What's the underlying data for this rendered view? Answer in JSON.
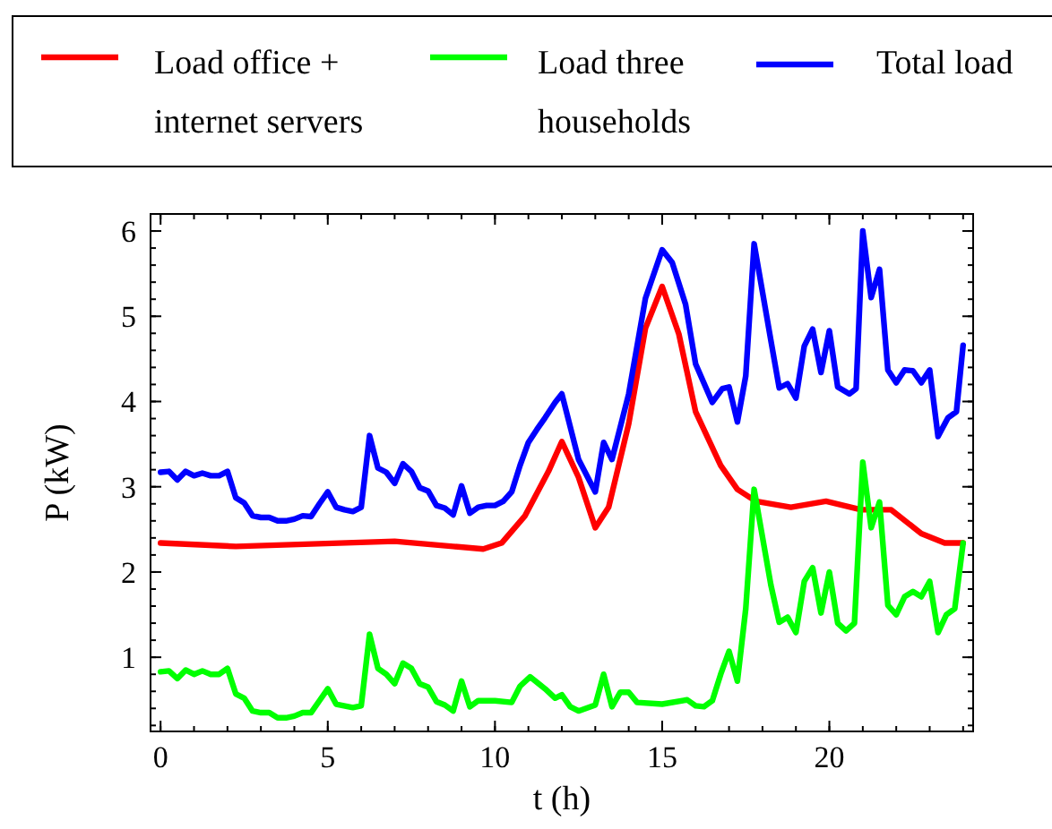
{
  "chart_data": {
    "type": "line",
    "xlabel": "t (h)",
    "ylabel": "P (kW)",
    "xlim": [
      -0.3,
      24.3
    ],
    "ylim": [
      0.13,
      6.2
    ],
    "xticks": [
      0,
      5,
      10,
      15,
      20
    ],
    "yticks": [
      1,
      2,
      3,
      4,
      5,
      6
    ],
    "legend": "top",
    "grid": false,
    "marker": "none",
    "line_style": "solid",
    "series": [
      {
        "name": "Load office + internet servers",
        "color": "#ff0000",
        "x": [
          0,
          2.25,
          7,
          8.75,
          9.65,
          10.2,
          10.9,
          11.6,
          12,
          12.5,
          13,
          13.4,
          14,
          14.5,
          15,
          15.5,
          16,
          16.75,
          17.25,
          17.8,
          18.85,
          19.9,
          20.95,
          21.85,
          22.75,
          23.45,
          24
        ],
        "values": [
          2.34,
          2.3,
          2.36,
          2.3,
          2.27,
          2.34,
          2.66,
          3.18,
          3.53,
          3.11,
          2.52,
          2.76,
          3.74,
          4.86,
          5.35,
          4.79,
          3.88,
          3.25,
          2.97,
          2.83,
          2.76,
          2.83,
          2.73,
          2.73,
          2.45,
          2.34,
          2.34
        ]
      },
      {
        "name": "Load three households",
        "color": "#00ff00",
        "x": [
          0,
          0.25,
          0.5,
          0.75,
          1,
          1.25,
          1.5,
          1.75,
          2,
          2.25,
          2.5,
          2.75,
          3,
          3.25,
          3.5,
          3.75,
          4,
          4.25,
          4.5,
          4.75,
          5,
          5.25,
          5.75,
          6,
          6.25,
          6.5,
          6.75,
          7,
          7.25,
          7.5,
          7.75,
          8,
          8.25,
          8.5,
          8.75,
          9,
          9.25,
          9.5,
          10,
          10.5,
          10.75,
          11.05,
          11.5,
          11.8,
          12,
          12.25,
          12.5,
          13,
          13.25,
          13.5,
          13.75,
          14,
          14.25,
          15,
          15.75,
          16,
          16.25,
          16.5,
          16.75,
          17,
          17.25,
          17.5,
          17.75,
          18.25,
          18.5,
          18.75,
          19,
          19.25,
          19.5,
          19.75,
          20,
          20.25,
          20.5,
          20.75,
          21,
          21.25,
          21.5,
          21.75,
          22,
          22.25,
          22.5,
          22.75,
          23,
          23.25,
          23.5,
          23.75,
          24
        ],
        "values": [
          0.83,
          0.84,
          0.75,
          0.85,
          0.8,
          0.84,
          0.8,
          0.8,
          0.87,
          0.57,
          0.52,
          0.37,
          0.35,
          0.35,
          0.29,
          0.29,
          0.31,
          0.35,
          0.35,
          0.49,
          0.63,
          0.45,
          0.41,
          0.43,
          1.27,
          0.87,
          0.8,
          0.69,
          0.93,
          0.87,
          0.69,
          0.65,
          0.48,
          0.44,
          0.37,
          0.72,
          0.42,
          0.49,
          0.49,
          0.47,
          0.66,
          0.77,
          0.63,
          0.52,
          0.56,
          0.42,
          0.37,
          0.44,
          0.8,
          0.42,
          0.59,
          0.59,
          0.47,
          0.45,
          0.5,
          0.43,
          0.42,
          0.49,
          0.8,
          1.07,
          0.72,
          1.57,
          2.97,
          1.85,
          1.41,
          1.47,
          1.29,
          1.89,
          2.05,
          1.52,
          2.0,
          1.4,
          1.31,
          1.4,
          3.29,
          2.52,
          2.82,
          1.61,
          1.5,
          1.71,
          1.77,
          1.71,
          1.89,
          1.29,
          1.5,
          1.57,
          2.34
        ]
      },
      {
        "name": "Total load",
        "color": "#0000ff",
        "x": [
          0,
          0.25,
          0.5,
          0.75,
          1,
          1.25,
          1.5,
          1.75,
          2,
          2.25,
          2.5,
          2.75,
          3,
          3.25,
          3.5,
          3.75,
          4,
          4.25,
          4.5,
          4.75,
          5,
          5.25,
          5.5,
          5.75,
          6,
          6.25,
          6.5,
          6.75,
          7,
          7.25,
          7.5,
          7.75,
          8,
          8.25,
          8.5,
          8.75,
          9,
          9.25,
          9.5,
          9.75,
          10,
          10.25,
          10.5,
          10.75,
          11,
          11.25,
          11.5,
          11.8,
          12,
          12.5,
          13,
          13.25,
          13.5,
          14,
          14.5,
          15,
          15.3,
          15.7,
          16,
          16.5,
          16.8,
          17,
          17.25,
          17.5,
          17.75,
          18.25,
          18.5,
          18.75,
          19,
          19.25,
          19.5,
          19.75,
          20,
          20.25,
          20.6,
          20.8,
          21,
          21.25,
          21.5,
          21.75,
          22,
          22.25,
          22.5,
          22.75,
          23,
          23.25,
          23.55,
          23.8,
          24
        ],
        "values": [
          3.17,
          3.18,
          3.08,
          3.18,
          3.13,
          3.16,
          3.13,
          3.13,
          3.18,
          2.87,
          2.81,
          2.66,
          2.64,
          2.64,
          2.6,
          2.6,
          2.62,
          2.66,
          2.65,
          2.8,
          2.94,
          2.76,
          2.73,
          2.71,
          2.76,
          3.6,
          3.22,
          3.17,
          3.04,
          3.27,
          3.18,
          2.99,
          2.95,
          2.78,
          2.75,
          2.67,
          3.01,
          2.69,
          2.76,
          2.78,
          2.78,
          2.83,
          2.94,
          3.25,
          3.52,
          3.67,
          3.81,
          3.99,
          4.09,
          3.32,
          2.94,
          3.52,
          3.32,
          4.09,
          5.21,
          5.78,
          5.63,
          5.14,
          4.44,
          3.99,
          4.15,
          4.17,
          3.76,
          4.3,
          5.85,
          4.72,
          4.16,
          4.21,
          4.04,
          4.65,
          4.85,
          4.34,
          4.83,
          4.17,
          4.09,
          4.15,
          6.0,
          5.22,
          5.55,
          4.37,
          4.22,
          4.37,
          4.36,
          4.22,
          4.37,
          3.59,
          3.81,
          3.88,
          4.66
        ]
      }
    ]
  }
}
